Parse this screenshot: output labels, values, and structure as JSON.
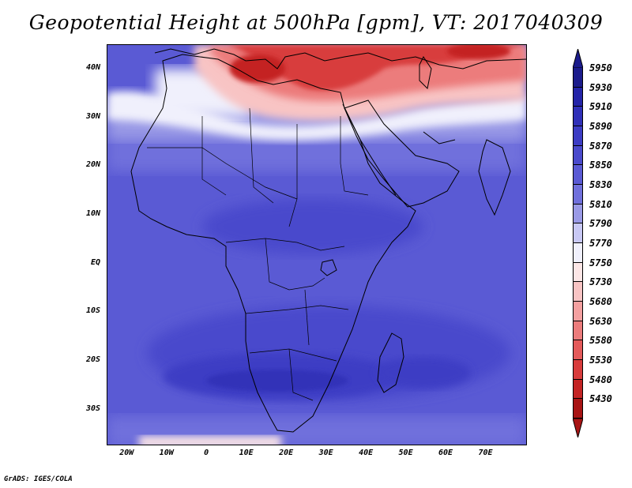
{
  "title": "Geopotential Height at 500hPa [gpm], VT: 2017040309",
  "credit": "GrADS: IGES/COLA",
  "map": {
    "lon_range": [
      -25,
      80
    ],
    "lat_range": [
      -37,
      45
    ],
    "lat_labels": [
      {
        "lat": 40,
        "label": "40N"
      },
      {
        "lat": 30,
        "label": "30N"
      },
      {
        "lat": 20,
        "label": "20N"
      },
      {
        "lat": 10,
        "label": "10N"
      },
      {
        "lat": 0,
        "label": "EQ"
      },
      {
        "lat": -10,
        "label": "10S"
      },
      {
        "lat": -20,
        "label": "20S"
      },
      {
        "lat": -30,
        "label": "30S"
      }
    ],
    "lon_labels": [
      {
        "lon": -20,
        "label": "20W"
      },
      {
        "lon": -10,
        "label": "10W"
      },
      {
        "lon": 0,
        "label": "0"
      },
      {
        "lon": 10,
        "label": "10E"
      },
      {
        "lon": 20,
        "label": "20E"
      },
      {
        "lon": 30,
        "label": "30E"
      },
      {
        "lon": 40,
        "label": "40E"
      },
      {
        "lon": 50,
        "label": "50E"
      },
      {
        "lon": 60,
        "label": "60E"
      },
      {
        "lon": 70,
        "label": "70E"
      }
    ]
  },
  "colorbar": {
    "levels": [
      "5950",
      "5930",
      "5910",
      "5890",
      "5870",
      "5850",
      "5830",
      "5810",
      "5790",
      "5770",
      "5750",
      "5730",
      "5680",
      "5630",
      "5580",
      "5530",
      "5480",
      "5430"
    ],
    "colors": [
      "#1c1c8c",
      "#2424a8",
      "#3030b8",
      "#3c3cc4",
      "#4a4acc",
      "#5a5ad4",
      "#7070dc",
      "#9a9ae6",
      "#c8c8f4",
      "#f0f0fc",
      "#fce6e6",
      "#f8c4c4",
      "#f4a0a0",
      "#ec7c7c",
      "#e45a5a",
      "#d83c3c",
      "#c42424",
      "#a81414"
    ]
  }
}
